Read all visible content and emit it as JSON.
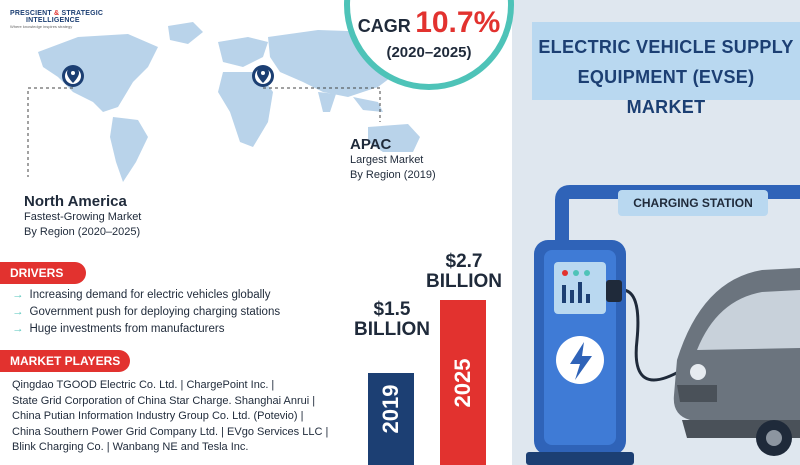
{
  "logo": {
    "line1a": "PRESCIENT",
    "amp": "&",
    "line1b": "STRATEGIC",
    "line2": "INTELLIGENCE",
    "tagline": "Where knowledge inspires strategy"
  },
  "title": {
    "line1": "ELECTRIC VEHICLE SUPPLY",
    "line2": "EQUIPMENT (EVSE) MARKET"
  },
  "cagr": {
    "label": "CAGR",
    "value": "10.7%",
    "period": "(2020–2025)"
  },
  "regions": {
    "north_america": {
      "name": "North America",
      "line1": "Fastest-Growing Market",
      "line2": "By Region (2020–2025)"
    },
    "apac": {
      "name": "APAC",
      "line1": "Largest Market",
      "line2": "By Region (2019)"
    }
  },
  "drivers": {
    "heading": "DRIVERS",
    "items": [
      "Increasing demand for electric vehicles globally",
      "Government push for deploying charging stations",
      "Huge investments from manufacturers"
    ]
  },
  "market_players": {
    "heading": "MARKET PLAYERS",
    "lines": [
      "Qingdao TGOOD Electric Co. Ltd. | ChargePoint Inc. |",
      "State Grid Corporation of China Star Charge. Shanghai Anrui |",
      "China Putian Information Industry Group Co. Ltd. (Potevio) |",
      "China Southern Power Grid Company Ltd. | EVgo Services LLC |",
      "Blink Charging Co. | Wanbang NE and Tesla Inc."
    ]
  },
  "market_size": {
    "bars": [
      {
        "year": "2019",
        "value_line1": "$1.5",
        "value_line2": "BILLION",
        "value": 1.5,
        "color": "#1c3f73"
      },
      {
        "year": "2025",
        "value_line1": "$2.7",
        "value_line2": "BILLION",
        "value": 2.7,
        "color": "#e2322f"
      }
    ]
  },
  "station": {
    "label": "CHARGING STATION"
  },
  "colors": {
    "accent_red": "#e2322f",
    "navy": "#1c3f73",
    "teal": "#4ec3b8",
    "light_blue": "#b9d8f0",
    "station_blue": "#2f63b8"
  }
}
